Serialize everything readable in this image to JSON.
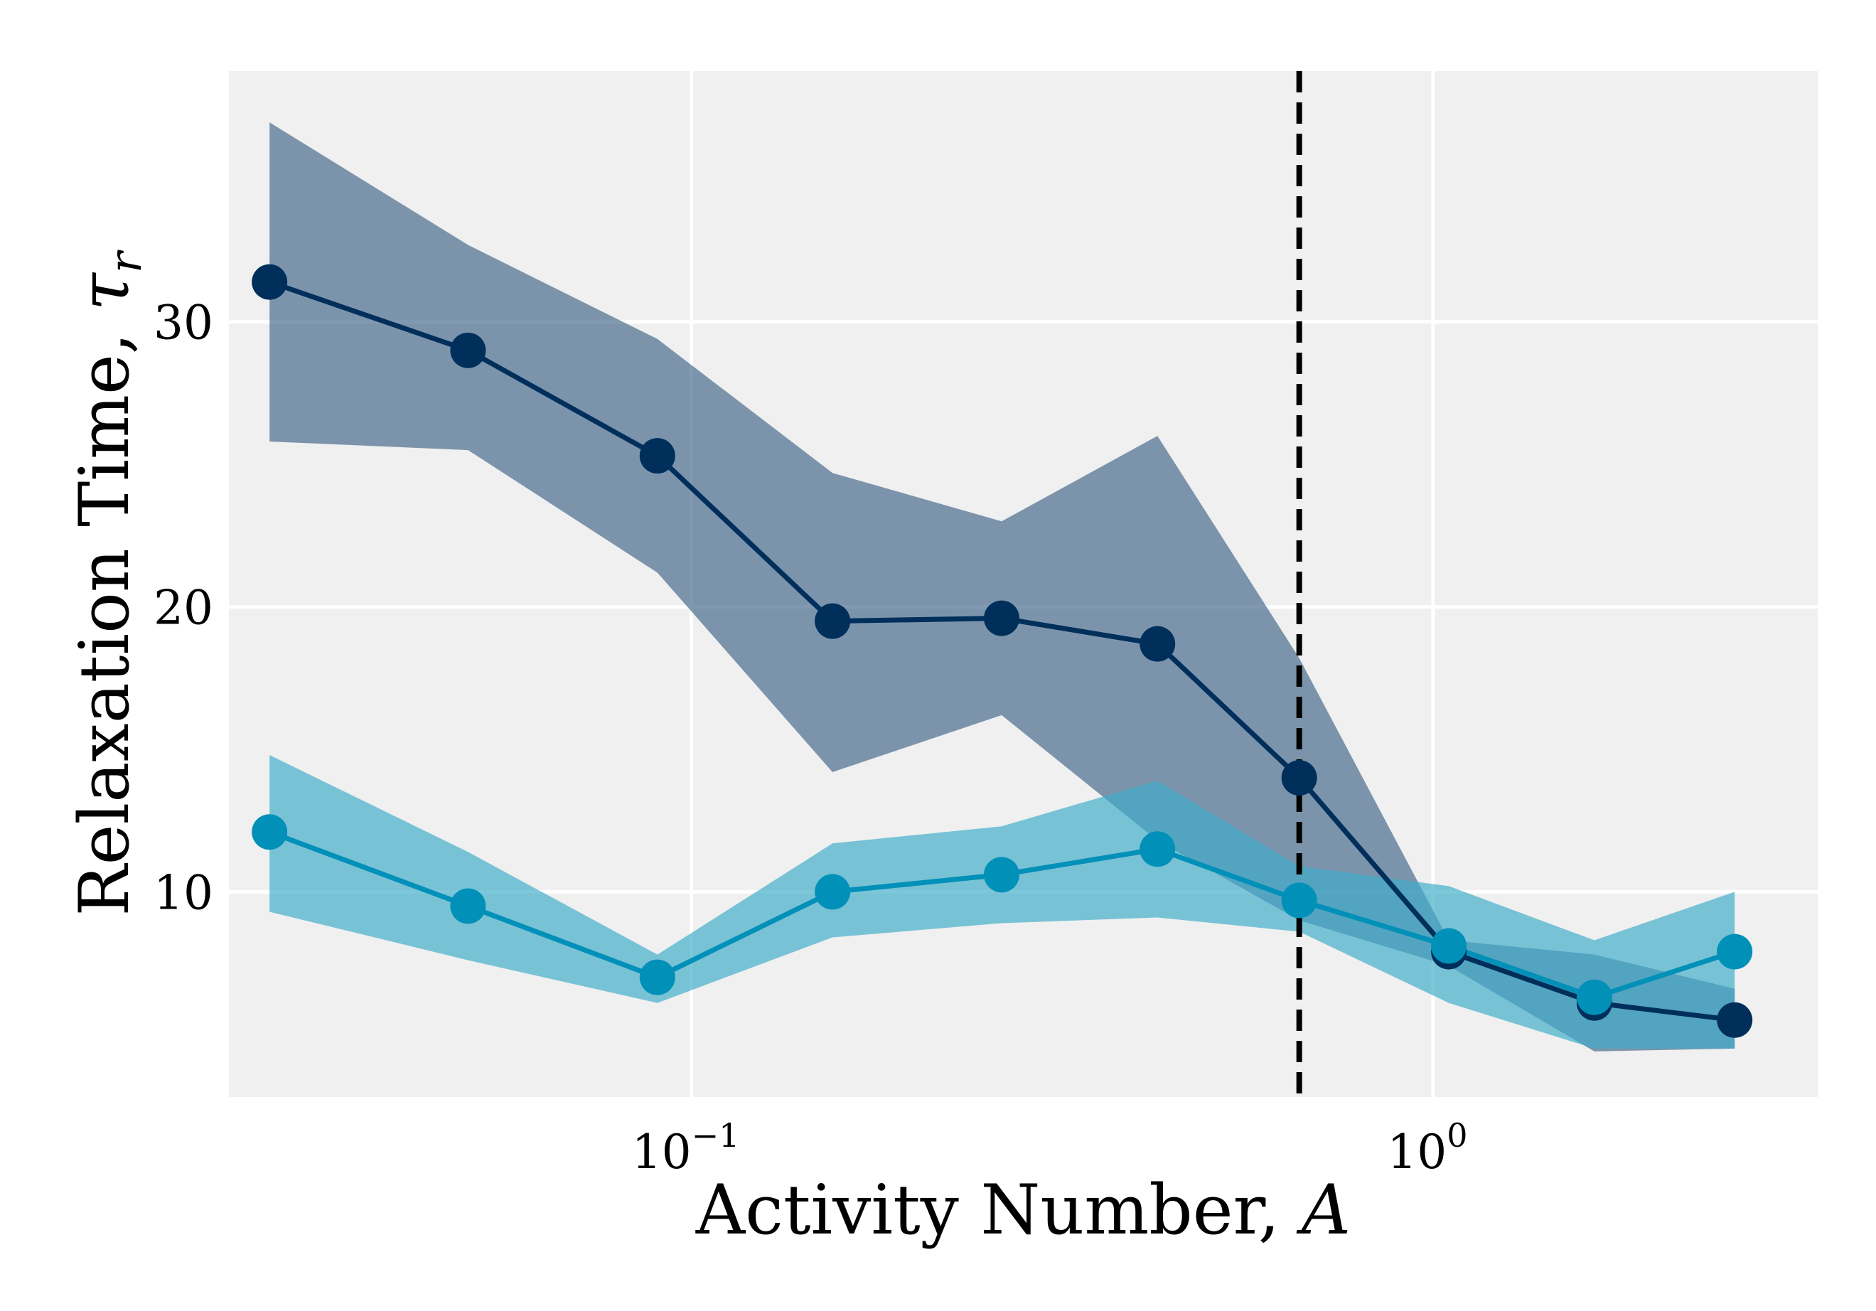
{
  "chart_data": {
    "type": "line",
    "title": "",
    "xlabel": "Activity Number, ",
    "xlabel_symbol": "A",
    "ylabel": "Relaxation Time, ",
    "ylabel_symbol": "τ",
    "ylabel_symbol_sub": "r",
    "x_scale": "log",
    "xlim": [
      0.0238,
      3.3
    ],
    "ylim": [
      2.8,
      38.8
    ],
    "x_ticks": [
      {
        "value": 0.1,
        "base": "10",
        "exp": "−1"
      },
      {
        "value": 1.0,
        "base": "10",
        "exp": "0"
      }
    ],
    "y_ticks": [
      {
        "value": 10,
        "label": "10"
      },
      {
        "value": 20,
        "label": "20"
      },
      {
        "value": 30,
        "label": "30"
      }
    ],
    "grid": true,
    "background": "#f0f0f0",
    "vline": {
      "x": 0.66,
      "style": "dashed",
      "color": "#000000"
    },
    "x": [
      0.027,
      0.05,
      0.09,
      0.155,
      0.262,
      0.425,
      0.66,
      1.05,
      1.65,
      2.55
    ],
    "series": [
      {
        "color": "#002f5c",
        "band_color": "#46698b",
        "values": [
          31.4,
          29.0,
          25.3,
          19.5,
          19.6,
          18.7,
          14.0,
          7.9,
          6.1,
          5.5
        ],
        "lower": [
          25.8,
          25.5,
          21.2,
          14.2,
          16.2,
          11.8,
          9.0,
          7.4,
          4.4,
          4.5
        ],
        "upper": [
          37.0,
          32.7,
          29.4,
          24.7,
          23.0,
          26.0,
          18.2,
          8.3,
          7.8,
          6.6
        ]
      },
      {
        "color": "#0090b8",
        "band_color": "#40adca",
        "values": [
          12.1,
          9.5,
          7.0,
          10.0,
          10.6,
          11.5,
          9.7,
          8.1,
          6.3,
          7.9
        ],
        "lower": [
          9.3,
          7.6,
          6.1,
          8.4,
          8.9,
          9.1,
          8.6,
          6.1,
          4.5,
          4.5
        ],
        "upper": [
          14.8,
          11.4,
          7.8,
          11.7,
          12.3,
          13.9,
          10.9,
          10.2,
          8.3,
          10.0
        ]
      }
    ]
  }
}
